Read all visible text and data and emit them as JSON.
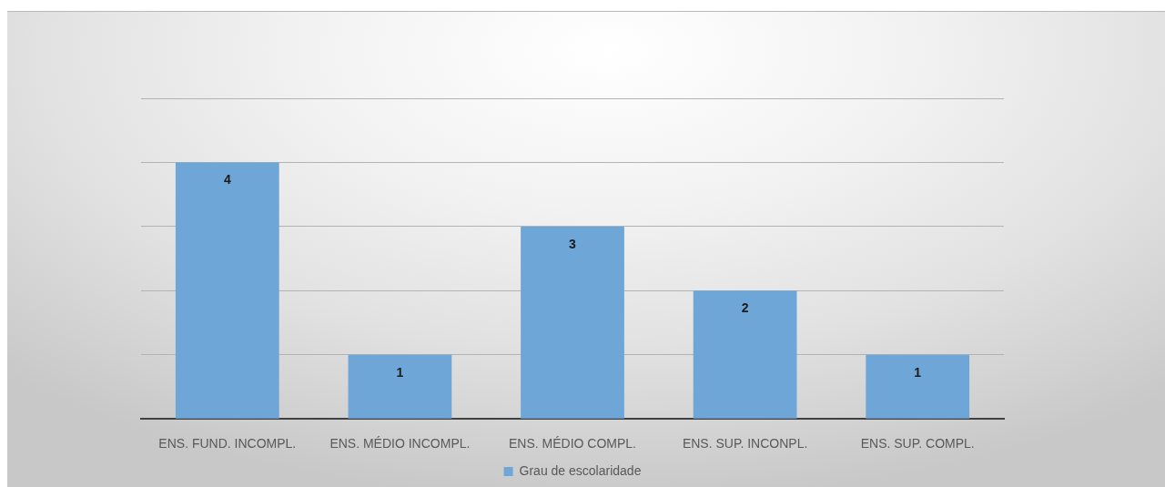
{
  "chart_data": {
    "type": "bar",
    "categories": [
      "ENS. FUND. INCOMPL.",
      "ENS. MÉDIO INCOMPL.",
      "ENS. MÉDIO COMPL.",
      "ENS. SUP. INCONPL.",
      "ENS. SUP. COMPL."
    ],
    "series": [
      {
        "name": "Grau de escolaridade",
        "color": "#6fa6d8",
        "values": [
          4,
          1,
          3,
          2,
          1
        ]
      }
    ],
    "ylim": [
      0,
      5
    ],
    "yticks": [
      {
        "value": 0,
        "label": null
      },
      {
        "value": 1,
        "label": null
      },
      {
        "value": 2,
        "label": null
      },
      {
        "value": 3,
        "label": null
      },
      {
        "value": 4,
        "label": null
      },
      {
        "value": 5,
        "label": null
      }
    ],
    "grid": "y",
    "legend": "bottom",
    "data_labels": true,
    "tick_labels": "x"
  }
}
